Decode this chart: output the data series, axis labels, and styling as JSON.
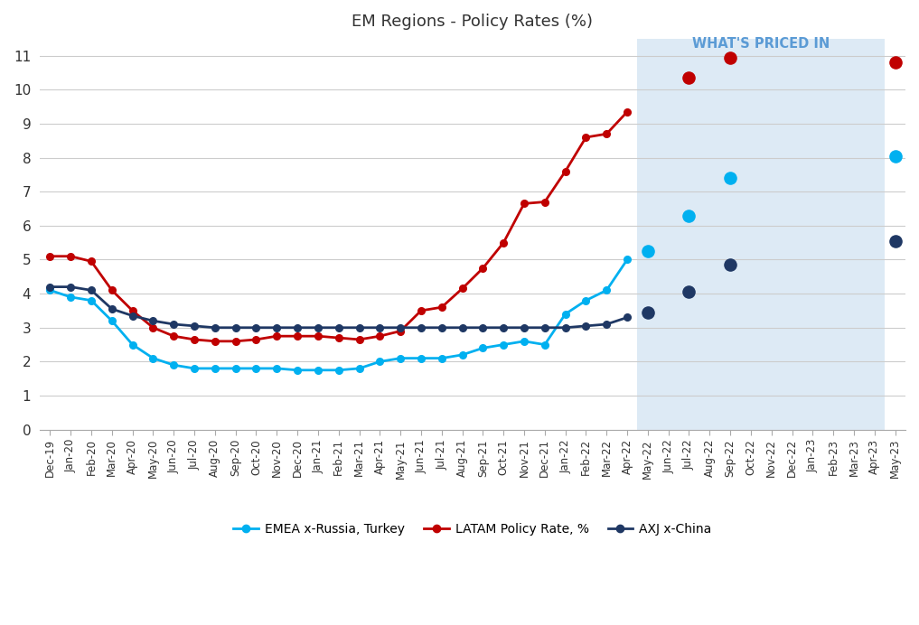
{
  "title": "EM Regions - Policy Rates (%)",
  "watermark": "WHAT'S PRICED IN",
  "background_color": "#ffffff",
  "shaded_region_color": "#ddeaf5",
  "ylim": [
    0,
    11.5
  ],
  "yticks": [
    0,
    1,
    2,
    3,
    4,
    5,
    6,
    7,
    8,
    9,
    10,
    11
  ],
  "series": {
    "EMEA": {
      "color": "#00b0f0",
      "label": "EMEA x-Russia, Turkey",
      "solid_dates": [
        "Dec-19",
        "Jan-20",
        "Feb-20",
        "Mar-20",
        "Apr-20",
        "May-20",
        "Jun-20",
        "Jul-20",
        "Aug-20",
        "Sep-20",
        "Oct-20",
        "Nov-20",
        "Dec-20",
        "Jan-21",
        "Feb-21",
        "Mar-21",
        "Apr-21",
        "May-21",
        "Jun-21",
        "Jul-21",
        "Aug-21",
        "Sep-21",
        "Oct-21",
        "Nov-21",
        "Dec-21",
        "Jan-22",
        "Feb-22",
        "Mar-22",
        "Apr-22"
      ],
      "solid_values": [
        4.1,
        3.9,
        3.8,
        3.2,
        2.5,
        2.1,
        1.9,
        1.8,
        1.8,
        1.8,
        1.8,
        1.8,
        1.75,
        1.75,
        1.75,
        1.8,
        2.0,
        2.1,
        2.1,
        2.1,
        2.2,
        2.4,
        2.5,
        2.6,
        2.5,
        3.4,
        3.8,
        4.1,
        5.0
      ],
      "dot_dates": [
        "May-22",
        "Jul-22",
        "Sep-22",
        "May-23"
      ],
      "dot_values": [
        5.25,
        6.3,
        7.4,
        8.05
      ]
    },
    "LATAM": {
      "color": "#c00000",
      "label": "LATAM Policy Rate, %",
      "solid_dates": [
        "Dec-19",
        "Jan-20",
        "Feb-20",
        "Mar-20",
        "Apr-20",
        "May-20",
        "Jun-20",
        "Jul-20",
        "Aug-20",
        "Sep-20",
        "Oct-20",
        "Nov-20",
        "Dec-20",
        "Jan-21",
        "Feb-21",
        "Mar-21",
        "Apr-21",
        "May-21",
        "Jun-21",
        "Jul-21",
        "Aug-21",
        "Sep-21",
        "Oct-21",
        "Nov-21",
        "Dec-21",
        "Jan-22",
        "Feb-22",
        "Mar-22",
        "Apr-22"
      ],
      "solid_values": [
        5.1,
        5.1,
        4.95,
        4.1,
        3.5,
        3.0,
        2.75,
        2.65,
        2.6,
        2.6,
        2.65,
        2.75,
        2.75,
        2.75,
        2.7,
        2.65,
        2.75,
        2.9,
        3.5,
        3.6,
        4.15,
        4.75,
        5.5,
        6.65,
        6.7,
        7.6,
        8.6,
        8.7,
        9.35
      ],
      "dot_dates": [
        "Jul-22",
        "Sep-22",
        "May-23"
      ],
      "dot_values": [
        10.35,
        10.95,
        10.8
      ]
    },
    "AXJ": {
      "color": "#1f3864",
      "label": "AXJ x-China",
      "solid_dates": [
        "Dec-19",
        "Jan-20",
        "Feb-20",
        "Mar-20",
        "Apr-20",
        "May-20",
        "Jun-20",
        "Jul-20",
        "Aug-20",
        "Sep-20",
        "Oct-20",
        "Nov-20",
        "Dec-20",
        "Jan-21",
        "Feb-21",
        "Mar-21",
        "Apr-21",
        "May-21",
        "Jun-21",
        "Jul-21",
        "Aug-21",
        "Sep-21",
        "Oct-21",
        "Nov-21",
        "Dec-21",
        "Jan-22",
        "Feb-22",
        "Mar-22",
        "Apr-22"
      ],
      "solid_values": [
        4.2,
        4.2,
        4.1,
        3.55,
        3.35,
        3.2,
        3.1,
        3.05,
        3.0,
        3.0,
        3.0,
        3.0,
        3.0,
        3.0,
        3.0,
        3.0,
        3.0,
        3.0,
        3.0,
        3.0,
        3.0,
        3.0,
        3.0,
        3.0,
        3.0,
        3.0,
        3.05,
        3.1,
        3.3
      ],
      "dot_dates": [
        "May-22",
        "Jul-22",
        "Sep-22",
        "May-23"
      ],
      "dot_values": [
        3.45,
        4.05,
        4.85,
        5.55
      ]
    }
  },
  "shaded_start": "May-22",
  "shaded_end": "Apr-23",
  "all_dates": [
    "Dec-19",
    "Jan-20",
    "Feb-20",
    "Mar-20",
    "Apr-20",
    "May-20",
    "Jun-20",
    "Jul-20",
    "Aug-20",
    "Sep-20",
    "Oct-20",
    "Nov-20",
    "Dec-20",
    "Jan-21",
    "Feb-21",
    "Mar-21",
    "Apr-21",
    "May-21",
    "Jun-21",
    "Jul-21",
    "Aug-21",
    "Sep-21",
    "Oct-21",
    "Nov-21",
    "Dec-21",
    "Jan-22",
    "Feb-22",
    "Mar-22",
    "Apr-22",
    "May-22",
    "Jun-22",
    "Jul-22",
    "Aug-22",
    "Sep-22",
    "Oct-22",
    "Nov-22",
    "Dec-22",
    "Jan-23",
    "Feb-23",
    "Mar-23",
    "Apr-23",
    "May-23"
  ]
}
